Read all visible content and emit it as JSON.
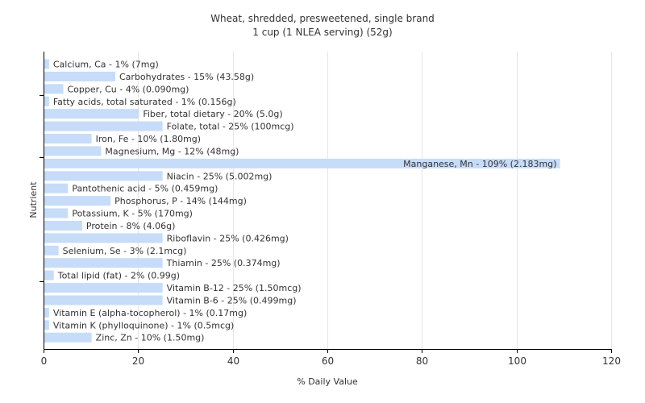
{
  "chart_data": {
    "type": "bar",
    "orientation": "horizontal",
    "title": "Wheat, shredded, presweetened, single brand",
    "subtitle": "1 cup (1 NLEA serving) (52g)",
    "xlabel": "% Daily Value",
    "ylabel": "Nutrient",
    "xlim": [
      0,
      120
    ],
    "xticks": [
      0,
      20,
      40,
      60,
      80,
      100,
      120
    ],
    "grid": true,
    "colors": {
      "bar": "#c6dcf8",
      "grid": "#e6e6e6",
      "axis": "#000000",
      "text": "#333333"
    },
    "categories": [
      "Calcium, Ca - 1% (7mg)",
      "Carbohydrates - 15% (43.58g)",
      "Copper, Cu - 4% (0.090mg)",
      "Fatty acids, total saturated - 1% (0.156g)",
      "Fiber, total dietary - 20% (5.0g)",
      "Folate, total - 25% (100mcg)",
      "Iron, Fe - 10% (1.80mg)",
      "Magnesium, Mg - 12% (48mg)",
      "Manganese, Mn - 109% (2.183mg)",
      "Niacin - 25% (5.002mg)",
      "Pantothenic acid - 5% (0.459mg)",
      "Phosphorus, P - 14% (144mg)",
      "Potassium, K - 5% (170mg)",
      "Protein - 8% (4.06g)",
      "Riboflavin - 25% (0.426mg)",
      "Selenium, Se - 3% (2.1mcg)",
      "Thiamin - 25% (0.374mg)",
      "Total lipid (fat) - 2% (0.99g)",
      "Vitamin B-12 - 25% (1.50mcg)",
      "Vitamin B-6 - 25% (0.499mg)",
      "Vitamin E (alpha-tocopherol) - 1% (0.17mg)",
      "Vitamin K (phylloquinone) - 1% (0.5mcg)",
      "Zinc, Zn - 10% (1.50mg)"
    ],
    "values": [
      1,
      15,
      4,
      1,
      20,
      25,
      10,
      12,
      109,
      25,
      5,
      14,
      5,
      8,
      25,
      3,
      25,
      2,
      25,
      25,
      1,
      1,
      10
    ]
  }
}
